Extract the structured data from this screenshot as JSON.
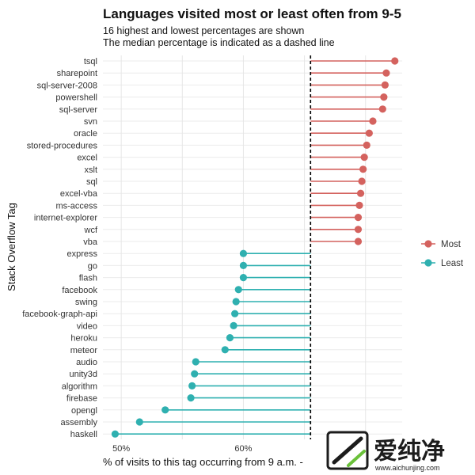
{
  "chart_data": {
    "type": "lollipop",
    "title": "Languages visited most or least often from 9-5",
    "subtitle_lines": [
      "16 highest and lowest percentages are shown",
      "The median percentage is indicated as a dashed line"
    ],
    "xlabel": "% of visits to this tag occurring from 9 a.m. -",
    "ylabel": "Stack Overflow Tag",
    "xlim": [
      48.5,
      73.0
    ],
    "median": 65.5,
    "x_ticks": [
      {
        "value": 50,
        "label": "50%"
      },
      {
        "value": 60,
        "label": "60%"
      }
    ],
    "x_gridlines": [
      50,
      55,
      60,
      65,
      70
    ],
    "legend": {
      "position": "right",
      "entries": [
        {
          "name": "Most",
          "color": "#d4625e"
        },
        {
          "name": "Least",
          "color": "#2fb0b0"
        }
      ]
    },
    "series": [
      {
        "name": "Most",
        "color": "#d4625e",
        "points": [
          {
            "tag": "tsql",
            "value": 72.4
          },
          {
            "tag": "sharepoint",
            "value": 71.7
          },
          {
            "tag": "sql-server-2008",
            "value": 71.6
          },
          {
            "tag": "powershell",
            "value": 71.5
          },
          {
            "tag": "sql-server",
            "value": 71.4
          },
          {
            "tag": "svn",
            "value": 70.6
          },
          {
            "tag": "oracle",
            "value": 70.3
          },
          {
            "tag": "stored-procedures",
            "value": 70.1
          },
          {
            "tag": "excel",
            "value": 69.9
          },
          {
            "tag": "xslt",
            "value": 69.8
          },
          {
            "tag": "sql",
            "value": 69.7
          },
          {
            "tag": "excel-vba",
            "value": 69.6
          },
          {
            "tag": "ms-access",
            "value": 69.5
          },
          {
            "tag": "internet-explorer",
            "value": 69.4
          },
          {
            "tag": "wcf",
            "value": 69.4
          },
          {
            "tag": "vba",
            "value": 69.4
          }
        ]
      },
      {
        "name": "Least",
        "color": "#2fb0b0",
        "points": [
          {
            "tag": "express",
            "value": 60.0
          },
          {
            "tag": "go",
            "value": 60.0
          },
          {
            "tag": "flash",
            "value": 60.0
          },
          {
            "tag": "facebook",
            "value": 59.6
          },
          {
            "tag": "swing",
            "value": 59.4
          },
          {
            "tag": "facebook-graph-api",
            "value": 59.3
          },
          {
            "tag": "video",
            "value": 59.2
          },
          {
            "tag": "heroku",
            "value": 58.9
          },
          {
            "tag": "meteor",
            "value": 58.5
          },
          {
            "tag": "audio",
            "value": 56.1
          },
          {
            "tag": "unity3d",
            "value": 56.0
          },
          {
            "tag": "algorithm",
            "value": 55.8
          },
          {
            "tag": "firebase",
            "value": 55.7
          },
          {
            "tag": "opengl",
            "value": 53.6
          },
          {
            "tag": "assembly",
            "value": 51.5
          },
          {
            "tag": "haskell",
            "value": 49.5
          }
        ]
      }
    ]
  },
  "watermark": {
    "main": "爱纯净",
    "sub": "www.aichunjing.com"
  }
}
